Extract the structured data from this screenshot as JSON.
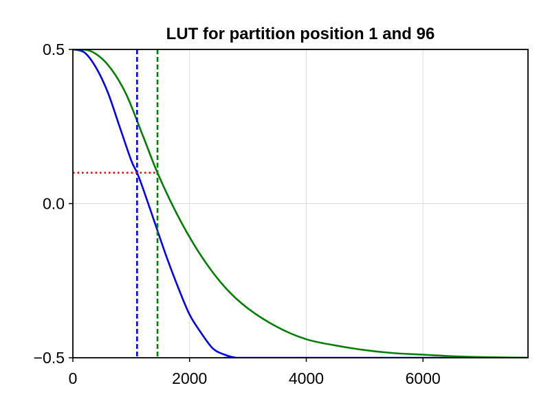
{
  "chart_data": {
    "type": "line",
    "title": "LUT for partition position 1 and 96",
    "xlabel": "",
    "ylabel": "",
    "xlim": [
      0,
      7800
    ],
    "ylim": [
      -0.5,
      0.5
    ],
    "grid": true,
    "x_ticks": [
      0,
      2000,
      4000,
      6000
    ],
    "x_tick_labels": [
      "0",
      "2000",
      "4000",
      "6000"
    ],
    "y_ticks": [
      -0.5,
      0.0,
      0.5
    ],
    "y_tick_labels": [
      "−0.5",
      "0.0",
      "0.5"
    ],
    "series": [
      {
        "color": "#0000ff",
        "x": [
          0,
          200,
          400,
          600,
          800,
          1000,
          1100,
          1200,
          1400,
          1600,
          1800,
          2000,
          2200,
          2400,
          2600,
          2800,
          3000,
          7800
        ],
        "y": [
          0.5,
          0.49,
          0.44,
          0.36,
          0.25,
          0.14,
          0.1,
          0.05,
          -0.06,
          -0.17,
          -0.27,
          -0.36,
          -0.42,
          -0.47,
          -0.49,
          -0.5,
          -0.5,
          -0.5
        ]
      },
      {
        "color": "#008000",
        "x": [
          0,
          300,
          600,
          900,
          1200,
          1450,
          1800,
          2200,
          2600,
          3000,
          3500,
          4000,
          4500,
          5000,
          5500,
          6000,
          6500,
          7000,
          7800
        ],
        "y": [
          0.5,
          0.495,
          0.45,
          0.36,
          0.22,
          0.1,
          -0.04,
          -0.17,
          -0.27,
          -0.34,
          -0.4,
          -0.44,
          -0.46,
          -0.475,
          -0.485,
          -0.49,
          -0.495,
          -0.498,
          -0.5
        ]
      }
    ],
    "reference_lines": [
      {
        "orientation": "vertical",
        "x": 1100,
        "color": "#0000ff",
        "style": "dashed"
      },
      {
        "orientation": "vertical",
        "x": 1450,
        "color": "#008000",
        "style": "dashed"
      },
      {
        "orientation": "horizontal",
        "y": 0.1,
        "x_range": [
          0,
          1450
        ],
        "color": "#ff0000",
        "style": "dotted"
      }
    ]
  }
}
